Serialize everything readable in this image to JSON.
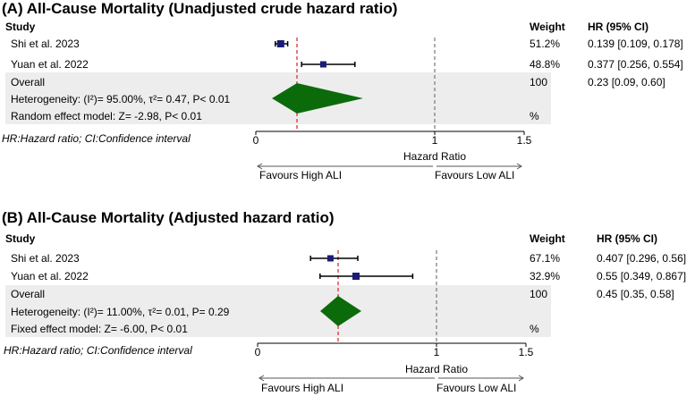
{
  "chart_data": [
    {
      "type": "forest",
      "title": "(A) All-Cause Mortality (Unadjusted crude hazard ratio)",
      "columns": {
        "study": "Study",
        "weight": "Weight",
        "hr": "HR (95% CI)"
      },
      "studies": [
        {
          "name": "Shi et al. 2023",
          "hr": 0.139,
          "lo": 0.109,
          "hi": 0.178,
          "weight": "51.2%",
          "hr_text": "0.139 [0.109, 0.178]"
        },
        {
          "name": "Yuan et al. 2022",
          "hr": 0.377,
          "lo": 0.256,
          "hi": 0.554,
          "weight": "48.8%",
          "hr_text": "0.377 [0.256, 0.554]"
        }
      ],
      "overall": {
        "label": "Overall",
        "hr": 0.23,
        "lo": 0.09,
        "hi": 0.6,
        "weight": "100",
        "hr_text": "0.23 [0.09, 0.60]"
      },
      "heterogeneity": "Heterogeneity: (I²)= 95.00%, τ²= 0.47, P< 0.01",
      "model": "Random effect model: Z= -2.98, P< 0.01",
      "model_unit": "%",
      "footnote": "HR:Hazard ratio; CI:Confidence interval",
      "xlim": [
        0,
        1.5
      ],
      "ticks": [
        "0",
        "1",
        "1.5"
      ],
      "tick_values": [
        0,
        1,
        1.5
      ],
      "xlabel": "Hazard Ratio",
      "favours_left": "Favours High ALI",
      "favours_right": "Favours Low ALI",
      "null_value": 1,
      "colors": {
        "square": "#1b1b7a",
        "diamond": "#0b6b0b",
        "pooled_line": "#e03030",
        "null_line": "#777777",
        "band": "#ededed"
      }
    },
    {
      "type": "forest",
      "title": "(B) All-Cause Mortality (Adjusted hazard ratio)",
      "columns": {
        "study": "Study",
        "weight": "Weight",
        "hr": "HR (95% CI)"
      },
      "studies": [
        {
          "name": "Shi et al. 2023",
          "hr": 0.407,
          "lo": 0.296,
          "hi": 0.56,
          "weight": "67.1%",
          "hr_text": "0.407 [0.296, 0.56]"
        },
        {
          "name": "Yuan et al. 2022",
          "hr": 0.55,
          "lo": 0.349,
          "hi": 0.867,
          "weight": "32.9%",
          "hr_text": "0.55 [0.349, 0.867]"
        }
      ],
      "overall": {
        "label": "Overall",
        "hr": 0.45,
        "lo": 0.35,
        "hi": 0.58,
        "weight": "100",
        "hr_text": "0.45 [0.35, 0.58]"
      },
      "heterogeneity": "Heterogeneity: (I²)= 11.00%, τ²= 0.01, P= 0.29",
      "model": "Fixed effect model: Z= -6.00, P< 0.01",
      "model_unit": "%",
      "footnote": "HR:Hazard ratio; CI:Confidence interval",
      "xlim": [
        0,
        1.5
      ],
      "ticks": [
        "0",
        "1",
        "1.5"
      ],
      "tick_values": [
        0,
        1,
        1.5
      ],
      "xlabel": "Hazard Ratio",
      "favours_left": "Favours High ALI",
      "favours_right": "Favours Low ALI",
      "null_value": 1,
      "colors": {
        "square": "#1b1b7a",
        "diamond": "#0b6b0b",
        "pooled_line": "#e03030",
        "null_line": "#777777",
        "band": "#ededed"
      }
    }
  ]
}
